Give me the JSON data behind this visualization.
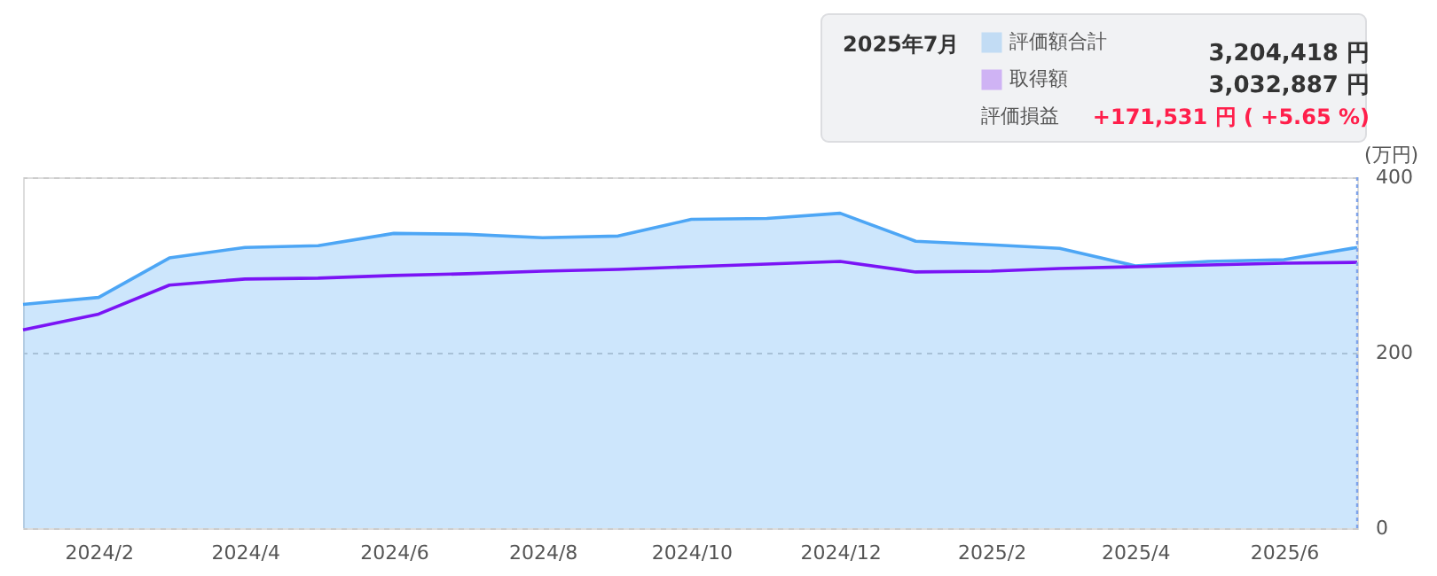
{
  "chart_data": {
    "type": "area",
    "x": [
      "2024-01",
      "2024-02",
      "2024-03",
      "2024-04",
      "2024-05",
      "2024-06",
      "2024-07",
      "2024-08",
      "2024-09",
      "2024-10",
      "2024-11",
      "2024-12",
      "2025-01",
      "2025-02",
      "2025-03",
      "2025-04",
      "2025-05",
      "2025-06",
      "2025-07"
    ],
    "series": [
      {
        "name": "評価額合計",
        "color": "#4da6f5",
        "values": [
          255,
          263,
          308,
          320,
          322,
          336,
          335,
          331,
          333,
          352,
          353,
          359,
          327,
          323,
          319,
          299,
          304,
          306,
          320
        ]
      },
      {
        "name": "取得額",
        "type": "line",
        "color": "#7a14f5",
        "values": [
          226,
          244,
          277,
          284,
          285,
          288,
          290,
          293,
          295,
          298,
          301,
          304,
          292,
          293,
          296,
          298,
          300,
          302,
          303
        ]
      }
    ],
    "ylabel": "(万円)",
    "xlim": [
      "2024-01",
      "2025-07"
    ],
    "xticks": [
      {
        "value": "2024-02",
        "label": "2024/2"
      },
      {
        "value": "2024-04",
        "label": "2024/4"
      },
      {
        "value": "2024-06",
        "label": "2024/6"
      },
      {
        "value": "2024-08",
        "label": "2024/8"
      },
      {
        "value": "2024-10",
        "label": "2024/10"
      },
      {
        "value": "2024-12",
        "label": "2024/12"
      },
      {
        "value": "2025-02",
        "label": "2025/2"
      },
      {
        "value": "2025-04",
        "label": "2025/4"
      },
      {
        "value": "2025-06",
        "label": "2025/6"
      }
    ],
    "ylim": [
      0,
      400
    ],
    "yticks": [
      0,
      200,
      400
    ],
    "grid": "y",
    "legend": "top right",
    "ref_lines": [
      {
        "axis": "x",
        "value": "2025-07",
        "color": "#7ea3ea",
        "line_style": "dotted"
      }
    ],
    "annotations": [
      "2025年7月",
      "3,204,418 円",
      "3,032,887 円",
      "評価損益",
      "+171,531 円 ( +5.65 %)"
    ]
  }
}
